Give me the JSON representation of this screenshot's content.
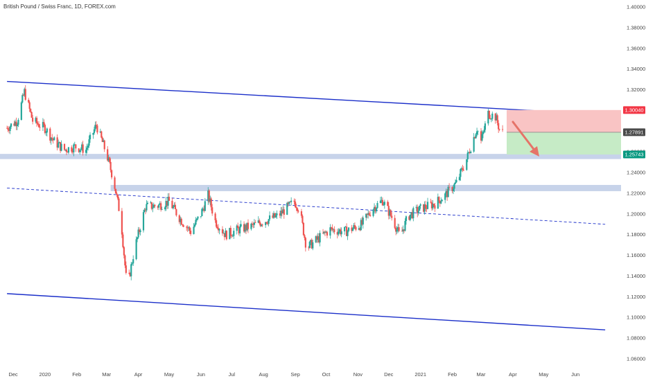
{
  "title": "British Pound / Swiss Franc, 1D, FOREX.com",
  "colors": {
    "up": "#26a69a",
    "down": "#ef5350",
    "channel": "#1a2ec9",
    "zone": "#c7d3ea",
    "stop_zone": "#f9c4c4",
    "target_zone": "#c6ebc6",
    "stop_badge": "#f23645",
    "target_badge": "#089981",
    "price_badge": "#4a4a4a",
    "arrow": "#e57368"
  },
  "y_axis": {
    "ticks": [
      "1.06000",
      "1.08000",
      "1.10000",
      "1.12000",
      "1.14000",
      "1.16000",
      "1.18000",
      "1.20000",
      "1.22000",
      "1.24000",
      "1.26000",
      "1.28000",
      "1.30000",
      "1.32000",
      "1.34000",
      "1.36000",
      "1.38000",
      "1.40000"
    ]
  },
  "x_axis": {
    "ticks": [
      "Dec",
      "2020",
      "Feb",
      "Mar",
      "Apr",
      "May",
      "Jun",
      "Jul",
      "Aug",
      "Sep",
      "Oct",
      "Nov",
      "Dec",
      "2021",
      "Feb",
      "Mar",
      "Apr",
      "May",
      "Jun"
    ]
  },
  "price_labels": {
    "stop": "1.30040",
    "current": "1.27891",
    "target": "1.25743"
  },
  "chart_data": {
    "type": "candlestick",
    "instrument": "British Pound / Swiss Franc",
    "timeframe": "1D",
    "ylim": [
      1.05,
      1.41
    ],
    "key_prices": {
      "stop": 1.3004,
      "entry": 1.27891,
      "target": 1.25743
    },
    "zones": [
      {
        "low": 1.253,
        "high": 1.258
      },
      {
        "low": 1.222,
        "high": 1.228
      }
    ],
    "channel_lines": [
      {
        "style": "solid",
        "from": [
          "2019-11-25",
          1.328
        ],
        "to": [
          "2021-06-30",
          1.296
        ]
      },
      {
        "style": "solid",
        "from": [
          "2019-11-25",
          1.123
        ],
        "to": [
          "2021-06-30",
          1.088
        ]
      },
      {
        "style": "dashed",
        "from": [
          "2019-11-25",
          1.225
        ],
        "to": [
          "2021-06-30",
          1.19
        ]
      }
    ],
    "price_path": [
      [
        "2019-11-25",
        1.283
      ],
      [
        "2019-12-05",
        1.29
      ],
      [
        "2019-12-12",
        1.318
      ],
      [
        "2019-12-20",
        1.29
      ],
      [
        "2020-01-01",
        1.283
      ],
      [
        "2020-01-10",
        1.27
      ],
      [
        "2020-01-20",
        1.262
      ],
      [
        "2020-01-30",
        1.265
      ],
      [
        "2020-02-10",
        1.262
      ],
      [
        "2020-02-20",
        1.286
      ],
      [
        "2020-03-01",
        1.258
      ],
      [
        "2020-03-08",
        1.232
      ],
      [
        "2020-03-15",
        1.195
      ],
      [
        "2020-03-21",
        1.128
      ],
      [
        "2020-03-28",
        1.165
      ],
      [
        "2020-04-08",
        1.207
      ],
      [
        "2020-04-20",
        1.208
      ],
      [
        "2020-05-01",
        1.212
      ],
      [
        "2020-05-12",
        1.195
      ],
      [
        "2020-05-22",
        1.183
      ],
      [
        "2020-06-01",
        1.2
      ],
      [
        "2020-06-08",
        1.218
      ],
      [
        "2020-06-15",
        1.193
      ],
      [
        "2020-06-25",
        1.18
      ],
      [
        "2020-07-08",
        1.185
      ],
      [
        "2020-07-20",
        1.188
      ],
      [
        "2020-08-01",
        1.193
      ],
      [
        "2020-08-15",
        1.198
      ],
      [
        "2020-08-31",
        1.212
      ],
      [
        "2020-09-05",
        1.205
      ],
      [
        "2020-09-12",
        1.167
      ],
      [
        "2020-09-22",
        1.175
      ],
      [
        "2020-10-05",
        1.185
      ],
      [
        "2020-10-20",
        1.183
      ],
      [
        "2020-11-05",
        1.19
      ],
      [
        "2020-11-15",
        1.205
      ],
      [
        "2020-11-25",
        1.213
      ],
      [
        "2020-12-05",
        1.195
      ],
      [
        "2020-12-12",
        1.178
      ],
      [
        "2020-12-20",
        1.198
      ],
      [
        "2021-01-01",
        1.205
      ],
      [
        "2021-01-15",
        1.21
      ],
      [
        "2021-01-25",
        1.218
      ],
      [
        "2021-02-05",
        1.23
      ],
      [
        "2021-02-15",
        1.253
      ],
      [
        "2021-02-25",
        1.283
      ],
      [
        "2021-03-01",
        1.27
      ],
      [
        "2021-03-08",
        1.297
      ],
      [
        "2021-03-15",
        1.294
      ],
      [
        "2021-03-19",
        1.282
      ],
      [
        "2021-03-22",
        1.279
      ]
    ]
  }
}
